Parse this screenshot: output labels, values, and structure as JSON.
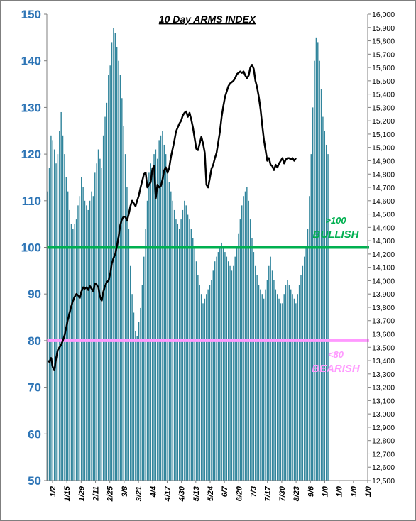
{
  "chart_data": {
    "type": "bar",
    "title": "10 Day ARMS INDEX",
    "left_axis": {
      "ylim": [
        50,
        150
      ],
      "ticks": [
        50,
        60,
        70,
        80,
        90,
        100,
        110,
        120,
        130,
        140,
        150
      ],
      "color": "#2e75b6"
    },
    "right_axis": {
      "ylim": [
        12500,
        16000
      ],
      "ticks": [
        "12,500",
        "12,600",
        "12,700",
        "12,800",
        "12,900",
        "13,000",
        "13,100",
        "13,200",
        "13,300",
        "13,400",
        "13,500",
        "13,600",
        "13,700",
        "13,800",
        "13,900",
        "14,000",
        "14,100",
        "14,200",
        "14,300",
        "14,400",
        "14,500",
        "14,600",
        "14,700",
        "14,800",
        "14,900",
        "15,000",
        "15,100",
        "15,200",
        "15,300",
        "15,400",
        "15,500",
        "15,600",
        "15,700",
        "15,800",
        "15,900",
        "16,000"
      ]
    },
    "x_tick_labels": [
      "1/2",
      "1/15",
      "1/29",
      "2/11",
      "2/25",
      "3/8",
      "3/21",
      "4/4",
      "4/17",
      "4/30",
      "5/13",
      "5/24",
      "6/7",
      "6/20",
      "7/3",
      "7/17",
      "7/30",
      "8/23",
      "9/6",
      "1/0",
      "1/0",
      "1/0",
      "1/0"
    ],
    "x_slots": 190,
    "bars": {
      "name": "10 Day ARMS Index",
      "color": "#31859c",
      "values": [
        112,
        117,
        124,
        123,
        121,
        118,
        120,
        125,
        129,
        124,
        120,
        115,
        112,
        108,
        105,
        104,
        105,
        106,
        109,
        111,
        115,
        113,
        110,
        109,
        108,
        110,
        112,
        111,
        116,
        118,
        121,
        119,
        117,
        124,
        128,
        131,
        137,
        139,
        144,
        147,
        146,
        143,
        140,
        137,
        132,
        126,
        120,
        113,
        104,
        96,
        90,
        86,
        82,
        81,
        84,
        87,
        92,
        98,
        104,
        110,
        116,
        118,
        117,
        120,
        121,
        119,
        123,
        124,
        125,
        122,
        120,
        116,
        114,
        112,
        110,
        108,
        106,
        105,
        104,
        106,
        108,
        110,
        109,
        107,
        106,
        104,
        102,
        100,
        97,
        94,
        92,
        90,
        88,
        89,
        90,
        91,
        92,
        93,
        95,
        97,
        98,
        99,
        100,
        101,
        100,
        99,
        98,
        97,
        96,
        95,
        96,
        98,
        100,
        103,
        106,
        109,
        111,
        112,
        113,
        110,
        106,
        102,
        99,
        96,
        94,
        92,
        91,
        90,
        89,
        91,
        93,
        96,
        98,
        95,
        93,
        91,
        90,
        89,
        88,
        88,
        90,
        92,
        93,
        92,
        91,
        90,
        89,
        88,
        90,
        92,
        94,
        96,
        98,
        100,
        104,
        111,
        120,
        130,
        140,
        145,
        144,
        140,
        134,
        128,
        125,
        122,
        120
      ]
    },
    "line": {
      "name": "Index",
      "color": "#000000",
      "axis": "right",
      "values": [
        13400,
        13390,
        13420,
        13350,
        13330,
        13420,
        13480,
        13500,
        13520,
        13550,
        13590,
        13650,
        13710,
        13760,
        13810,
        13850,
        13880,
        13900,
        13890,
        13870,
        13920,
        13950,
        13940,
        13950,
        13930,
        13960,
        13940,
        13920,
        13980,
        13970,
        13950,
        13880,
        13850,
        13920,
        13960,
        13990,
        14000,
        14050,
        14130,
        14170,
        14200,
        14260,
        14330,
        14420,
        14460,
        14480,
        14480,
        14450,
        14500,
        14560,
        14600,
        14580,
        14560,
        14600,
        14640,
        14700,
        14750,
        14800,
        14810,
        14700,
        14720,
        14740,
        14840,
        14860,
        14620,
        14720,
        14700,
        14710,
        14760,
        14830,
        14850,
        14810,
        14850,
        14930,
        14990,
        15050,
        15120,
        15150,
        15180,
        15200,
        15240,
        15260,
        15270,
        15230,
        15260,
        15210,
        15150,
        15070,
        14990,
        14980,
        15030,
        15080,
        15030,
        14960,
        14720,
        14700,
        14770,
        14840,
        14870,
        14920,
        14960,
        15040,
        15120,
        15230,
        15310,
        15380,
        15420,
        15460,
        15480,
        15490,
        15500,
        15520,
        15550,
        15560,
        15570,
        15560,
        15570,
        15540,
        15520,
        15540,
        15600,
        15620,
        15590,
        15500,
        15450,
        15380,
        15290,
        15170,
        15060,
        14980,
        14900,
        14920,
        14870,
        14860,
        14830,
        14870,
        14850,
        14880,
        14900,
        14920,
        14880,
        14910,
        14920,
        14920,
        14910,
        14920,
        14900,
        14920
      ]
    },
    "reference_lines": [
      {
        "value": 100,
        "color": "#00b050",
        "label_top": ">100",
        "label_bottom": "BULLISH"
      },
      {
        "value": 80,
        "color": "#ff99ff",
        "label_top": "<80",
        "label_bottom": "BEARISH"
      }
    ],
    "colors": {
      "bars": "#31859c",
      "line": "#000000",
      "bullish": "#00b050",
      "bearish": "#ff99ff",
      "left_axis_text": "#2e75b6"
    },
    "grid": false
  }
}
